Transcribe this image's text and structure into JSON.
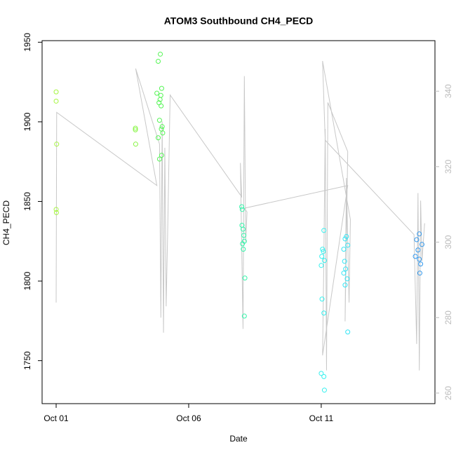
{
  "chart_data": {
    "type": "scatter",
    "title": "ATOM3 Southbound CH4_PECD",
    "x_label": "Date",
    "y_label": "CH4_PECD",
    "xlim": [
      -0.53,
      14.29
    ],
    "xticks": [
      {
        "value": 0,
        "label": "Oct 01"
      },
      {
        "value": 5,
        "label": "Oct 06"
      },
      {
        "value": 10,
        "label": "Oct 11"
      }
    ],
    "ylim": [
      1723,
      1951
    ],
    "yticks": [
      1750,
      1800,
      1850,
      1900,
      1950
    ],
    "y2lim": [
      257.2,
      353.4
    ],
    "y2ticks": [
      260,
      280,
      300,
      320,
      340
    ],
    "series": [
      {
        "type": "scatter",
        "x": [
          0,
          0,
          0.02,
          0,
          0.01,
          2.99,
          2.99,
          3.0,
          3.93,
          3.85,
          3.98,
          3.8,
          3.95,
          3.92,
          3.88,
          3.96,
          3.9,
          4.0,
          3.97,
          4.02,
          3.85,
          3.98,
          3.9,
          7.0,
          7.02,
          7.01,
          7.05,
          7.08,
          7.1,
          7.03,
          7.06,
          7.12,
          7.1,
          10.1,
          10.05,
          10.08,
          10.02,
          10.12,
          10.0,
          10.03,
          10.1,
          10.0,
          10.1,
          10.12,
          10.95,
          10.9,
          11.0,
          10.85,
          10.88,
          10.92,
          10.85,
          10.98,
          10.9,
          11.0,
          13.7,
          13.6,
          13.8,
          13.65,
          13.55,
          13.7,
          13.75,
          13.72
        ],
        "values": [
          1918.8,
          1913,
          1886,
          1845,
          1843,
          1896,
          1895,
          1886,
          1942.5,
          1938,
          1921,
          1918,
          1916.6,
          1914,
          1912,
          1910,
          1901,
          1897,
          1895.5,
          1893,
          1890,
          1879,
          1876.6,
          1846.7,
          1845,
          1835,
          1832.6,
          1828.7,
          1825,
          1823.4,
          1820,
          1801.9,
          1778,
          1831.8,
          1820,
          1818.6,
          1815.5,
          1812.9,
          1809.8,
          1788.7,
          1779.9,
          1742,
          1740,
          1731.5,
          1828,
          1826.5,
          1822.5,
          1820,
          1812.4,
          1807.6,
          1805,
          1801.4,
          1797.5,
          1768,
          1829.6,
          1826,
          1823,
          1819.5,
          1815.5,
          1813.7,
          1810.7,
          1805
        ],
        "colors": [
          "#a6f542",
          "#a6f542",
          "#a6f542",
          "#a6f542",
          "#a6f542",
          "#86f542",
          "#86f542",
          "#86f542",
          "#55f555",
          "#55f555",
          "#55f555",
          "#55f555",
          "#55f555",
          "#55f555",
          "#55f555",
          "#55f555",
          "#55f555",
          "#55f555",
          "#55f555",
          "#55f555",
          "#55f555",
          "#55f555",
          "#55f555",
          "#33f5aa",
          "#33f5aa",
          "#33f5aa",
          "#33f5aa",
          "#33f5aa",
          "#33f5aa",
          "#33f5aa",
          "#33f5aa",
          "#33f5aa",
          "#33f5aa",
          "#33f0ee",
          "#33f0ee",
          "#33f0ee",
          "#33f0ee",
          "#33f0ee",
          "#33f0ee",
          "#33f0ee",
          "#33f0ee",
          "#33f0ee",
          "#33f0ee",
          "#33f0ee",
          "#33e5f5",
          "#33e5f5",
          "#33e5f5",
          "#33e5f5",
          "#33e5f5",
          "#33e5f5",
          "#33e5f5",
          "#33e5f5",
          "#33e5f5",
          "#33e5f5",
          "#3399ee",
          "#3399ee",
          "#3399ee",
          "#3399ee",
          "#3399ee",
          "#3399ee",
          "#3399ee",
          "#3399ee"
        ]
      },
      {
        "type": "line",
        "axis": "y2",
        "color": "#c8c8c8",
        "x": [
          0,
          0.02,
          3.8,
          3.0,
          3.9,
          3.95,
          4.0,
          4.05,
          4.1,
          4.15,
          4.2,
          4.3,
          7.0,
          6.95,
          7.05,
          7.1,
          7.15,
          7.2,
          7.1,
          11.0,
          10.05,
          10.1,
          10.15,
          10.2,
          10.25,
          11.0,
          10.9,
          10.95,
          11.05,
          11.1,
          10.05,
          10.15,
          13.5,
          13.6,
          13.65,
          13.7,
          13.75,
          13.8,
          13.9
        ],
        "values": [
          284,
          334.4,
          315,
          346,
          326,
          280,
          332,
          276,
          325,
          283,
          300,
          339,
          312,
          321,
          277,
          344,
          300,
          308,
          309,
          315,
          270,
          296,
          330,
          266,
          337,
          324,
          279,
          317,
          284,
          306,
          348,
          327,
          302,
          273,
          313,
          266,
          311,
          295,
          305
        ]
      }
    ]
  }
}
